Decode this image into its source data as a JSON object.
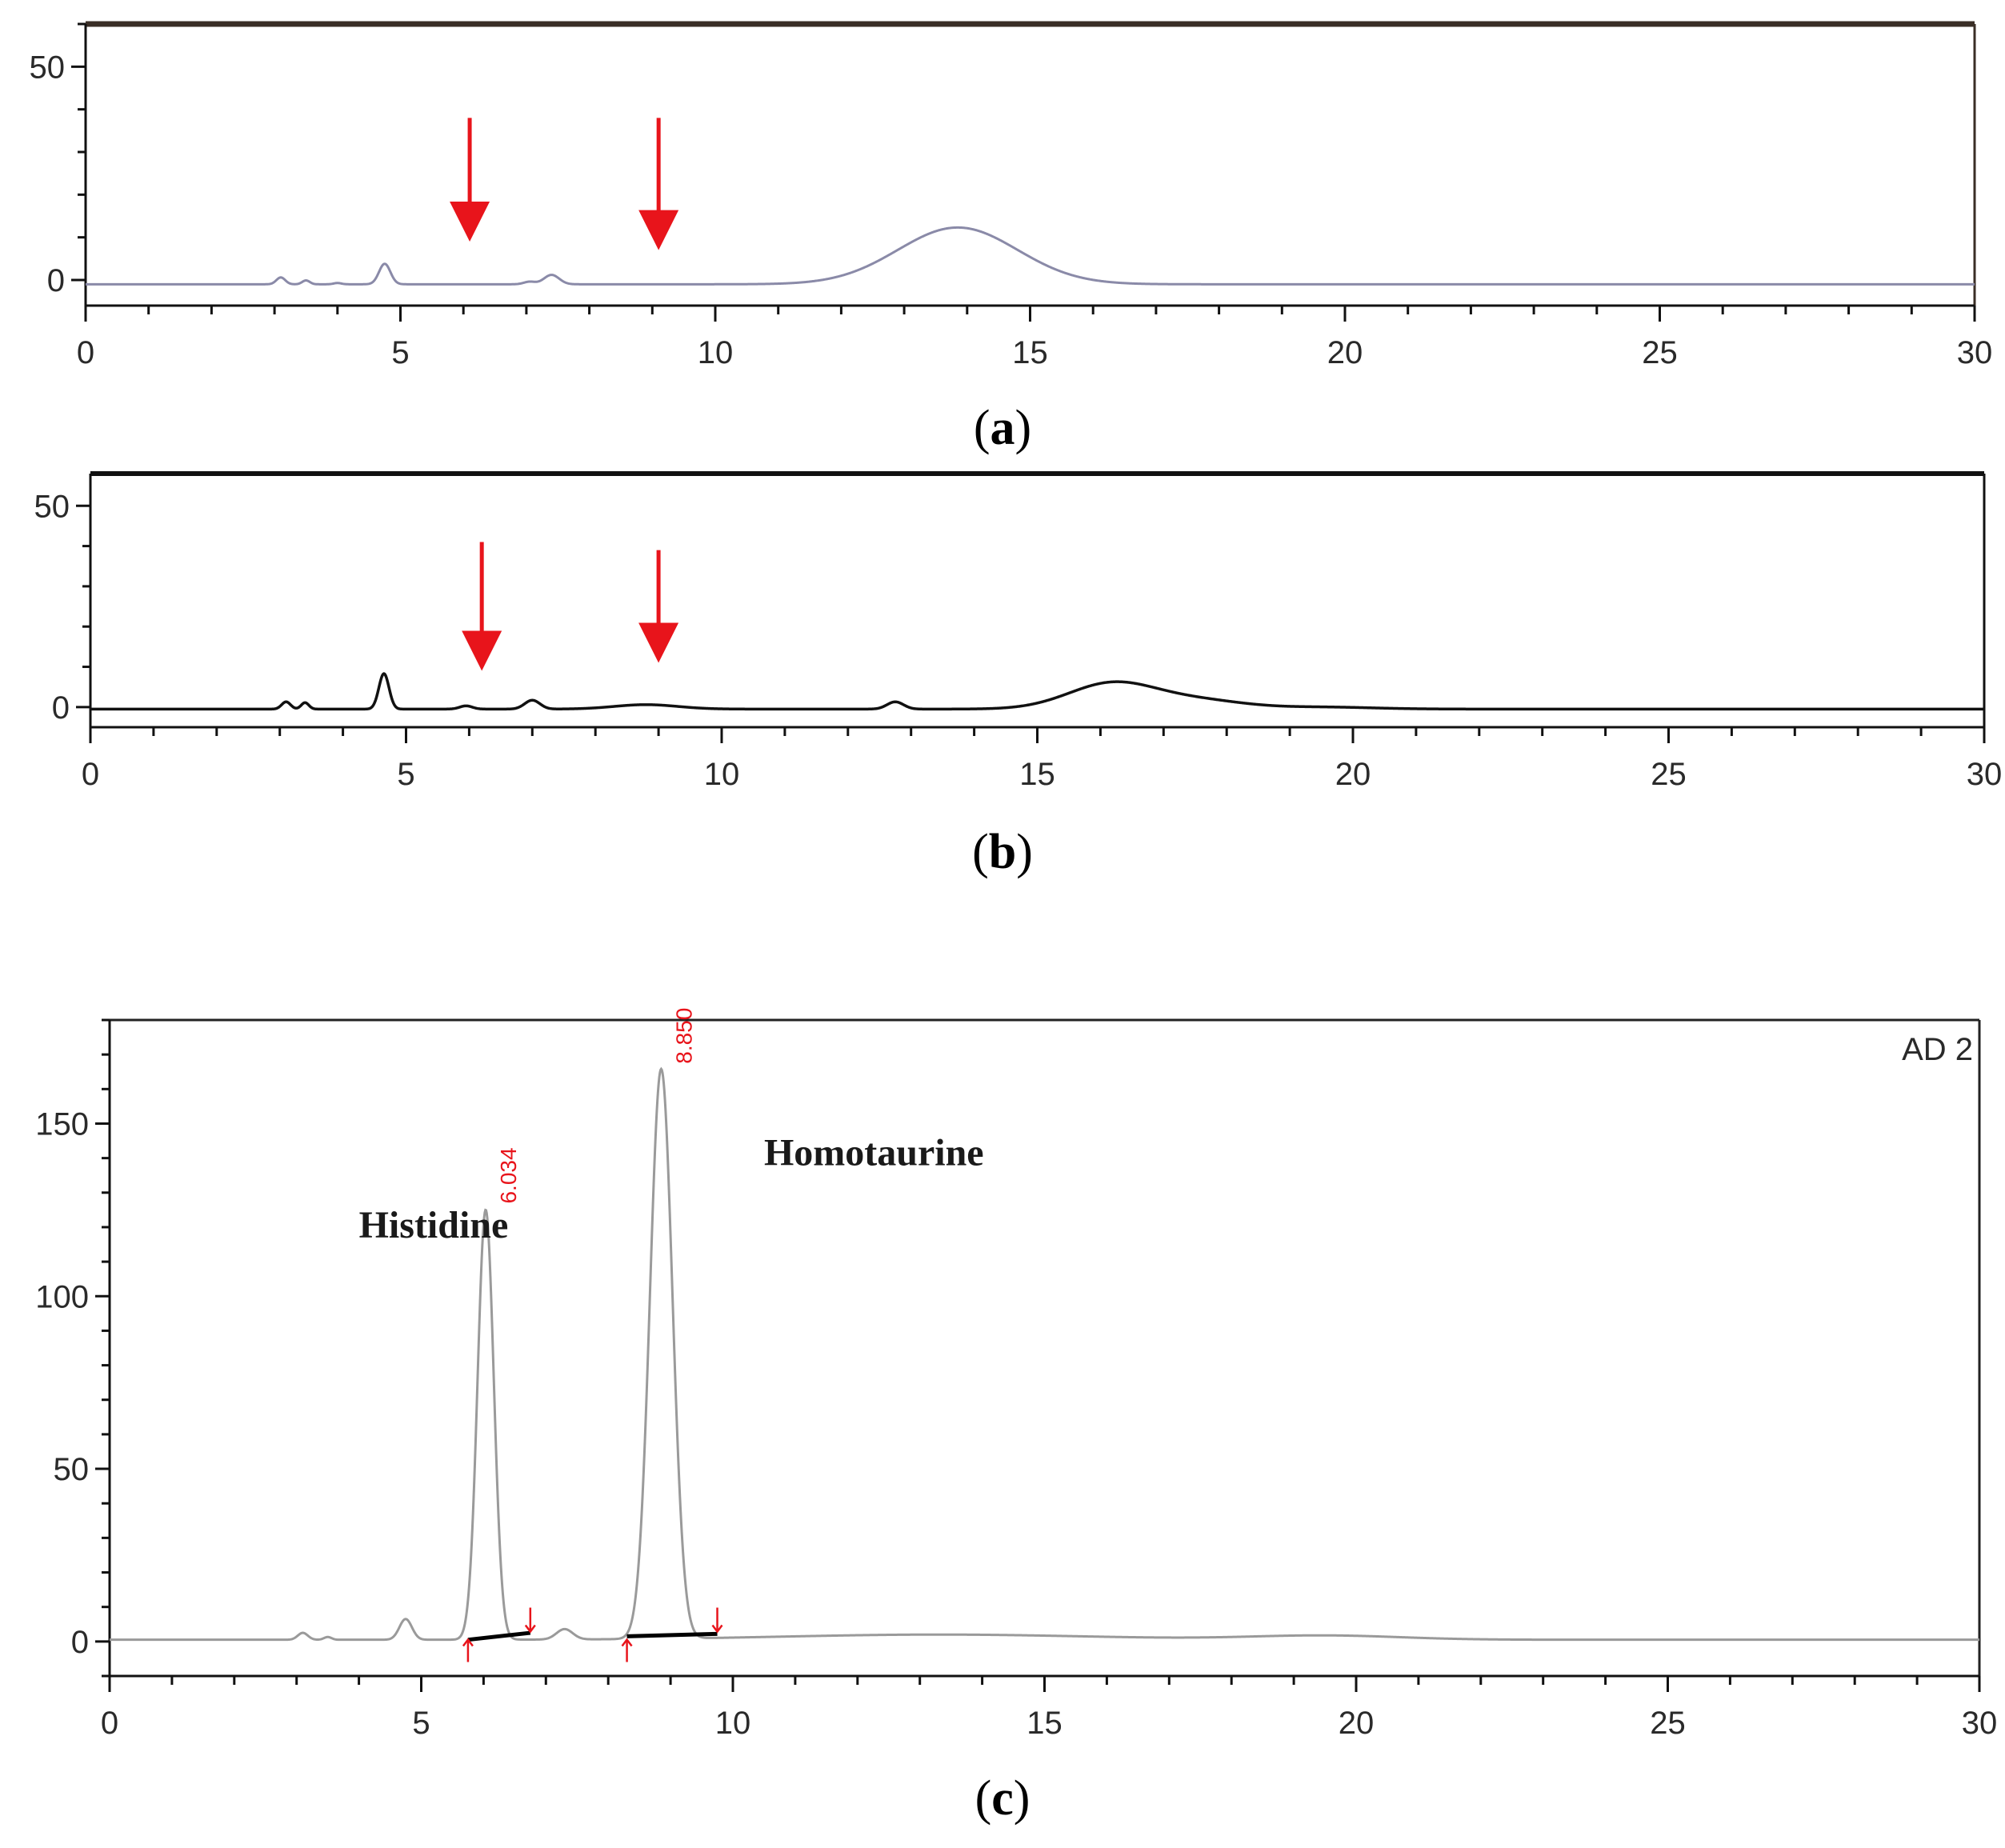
{
  "chart_data": [
    {
      "type": "line",
      "panel": "a",
      "caption": {
        "open": "(",
        "letter": "a",
        "close": ")"
      },
      "xlim": [
        0,
        30
      ],
      "ylim": [
        -6,
        60
      ],
      "x_ticks": [
        "0",
        "5",
        "10",
        "15",
        "20",
        "25",
        "30"
      ],
      "y_ticks": [
        "0",
        "50"
      ],
      "series": [
        {
          "color": "#8a8aa8",
          "baseline": -1,
          "peaks": [
            [
              3.1,
              1.6,
              0.07
            ],
            [
              3.5,
              0.9,
              0.06
            ],
            [
              4.0,
              0.3,
              0.06
            ],
            [
              4.75,
              4.8,
              0.09
            ],
            [
              7.05,
              0.6,
              0.09
            ],
            [
              7.4,
              2.2,
              0.12
            ],
            [
              13.85,
              13.3,
              0.95
            ]
          ]
        }
      ],
      "arrows": [
        {
          "x": 6.1,
          "y_from": 38,
          "y_to": 9
        },
        {
          "x": 9.1,
          "y_from": 38,
          "y_to": 7
        }
      ]
    },
    {
      "type": "line",
      "panel": "b",
      "caption": {
        "open": "(",
        "letter": "b",
        "close": ")"
      },
      "xlim": [
        0,
        30
      ],
      "ylim": [
        -5,
        58
      ],
      "x_ticks": [
        "0",
        "5",
        "10",
        "15",
        "20",
        "25",
        "30"
      ],
      "y_ticks": [
        "0",
        "50"
      ],
      "series": [
        {
          "color": "#111111",
          "baseline": -0.5,
          "peaks": [
            [
              3.1,
              1.8,
              0.07
            ],
            [
              3.4,
              1.6,
              0.06
            ],
            [
              4.65,
              8.8,
              0.08
            ],
            [
              5.95,
              0.8,
              0.1
            ],
            [
              7.0,
              2.2,
              0.12
            ],
            [
              8.8,
              1.1,
              0.5
            ],
            [
              12.75,
              1.8,
              0.13
            ],
            [
              16.2,
              6.5,
              0.7
            ],
            [
              17.6,
              2.0,
              0.7
            ],
            [
              19.5,
              0.5,
              0.8
            ]
          ]
        }
      ],
      "arrows": [
        {
          "x": 6.2,
          "y_from": 41,
          "y_to": 9
        },
        {
          "x": 9.0,
          "y_from": 39,
          "y_to": 11
        }
      ]
    },
    {
      "type": "line",
      "panel": "c",
      "caption": {
        "open": "(",
        "letter": "c",
        "close": ")"
      },
      "xlim": [
        0,
        30
      ],
      "ylim": [
        -10,
        180
      ],
      "x_ticks": [
        "0",
        "5",
        "10",
        "15",
        "20",
        "25",
        "30"
      ],
      "y_ticks": [
        "0",
        "50",
        "100",
        "150"
      ],
      "corner_label": "AD 2",
      "series": [
        {
          "color": "#9a9a9a",
          "baseline": 0.5,
          "peaks": [
            [
              3.1,
              2.0,
              0.08
            ],
            [
              3.5,
              0.8,
              0.06
            ],
            [
              4.75,
              6.0,
              0.1
            ],
            [
              6.034,
              124.5,
              0.13
            ],
            [
              7.3,
              3.0,
              0.13
            ],
            [
              8.85,
              165.0,
              0.18
            ],
            [
              13.3,
              1.5,
              2.5
            ],
            [
              19.5,
              1.2,
              1.2
            ]
          ]
        }
      ],
      "peak_labels": [
        {
          "text": "6.034",
          "x": 6.034,
          "y": 124.5
        },
        {
          "text": "8.850",
          "x": 8.85,
          "y": 165.0
        }
      ],
      "compound_labels": [
        {
          "text": "Histidine",
          "x": 4.0,
          "y": 117
        },
        {
          "text": "Homotaurine",
          "x": 10.5,
          "y": 138
        }
      ],
      "integration_baselines": [
        {
          "x1": 5.75,
          "y1": 0.5,
          "x2": 6.75,
          "y2": 2.5
        },
        {
          "x1": 8.3,
          "y1": 1.5,
          "x2": 9.75,
          "y2": 2.2
        }
      ],
      "integration_markers": [
        {
          "x": 5.75,
          "dir": "up"
        },
        {
          "x": 6.75,
          "dir": "down"
        },
        {
          "x": 8.3,
          "dir": "up"
        },
        {
          "x": 9.75,
          "dir": "down"
        }
      ]
    }
  ]
}
